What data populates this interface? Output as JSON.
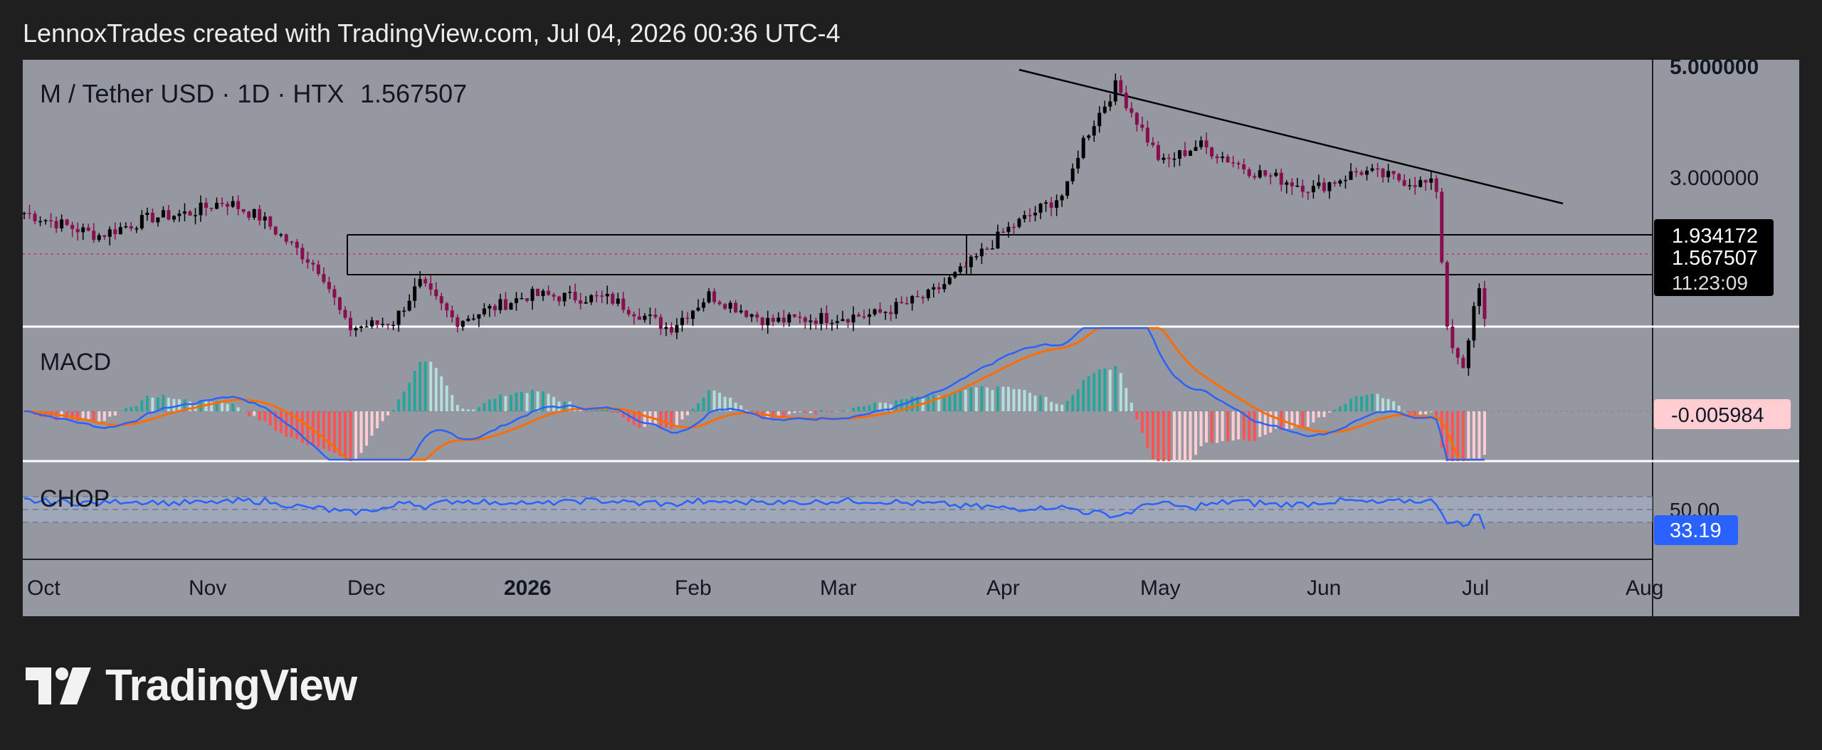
{
  "header": {
    "title": "LennoxTrades created with TradingView.com, Jul 04, 2026 00:36 UTC-4"
  },
  "symbol": {
    "label": "M / Tether USD · 1D · HTX",
    "last_price": "1.567507"
  },
  "price_axis": {
    "ticks": [
      "5.000000",
      "3.000000"
    ],
    "box_top_label": "1.934172",
    "last_price_label": "1.567507",
    "countdown": "11:23:09"
  },
  "macd": {
    "label": "MACD",
    "value": "-0.005984"
  },
  "chop": {
    "label": "CHOP",
    "level_label": "50.00",
    "value": "33.19"
  },
  "time_axis": [
    "Oct",
    "Nov",
    "Dec",
    "2026",
    "Feb",
    "Mar",
    "Apr",
    "May",
    "Jun",
    "Jul",
    "Aug"
  ],
  "brand": {
    "name": "TradingView"
  },
  "colors": {
    "panel_bg": "#9598a1",
    "up_candle": "#000000",
    "down_candle": "#880e4f",
    "macd_line": "#2962ff",
    "signal_line": "#ff6d00",
    "hist_pos_strong": "#26a69a",
    "hist_pos_weak": "#b2dfdb",
    "hist_neg_strong": "#ff5252",
    "hist_neg_weak": "#ffcdd2",
    "chop_line": "#2962ff",
    "chop_value_bg": "#2962ff",
    "macd_value_bg": "#ffcdd2"
  },
  "chart_data": {
    "type": "candlestick",
    "title": "M / Tether USD · 1D · HTX",
    "x_ticks": [
      "Oct",
      "Nov",
      "Dec",
      "2026",
      "Feb",
      "Mar",
      "Apr",
      "May",
      "Jun",
      "Jul",
      "Aug"
    ],
    "y_scale": "log",
    "y_ticks": [
      5.0,
      3.0
    ],
    "last_price": 1.567507,
    "range_box": {
      "top": 1.934172,
      "bottom": 1.45,
      "from": "Nov 27",
      "to": "Mar 27"
    },
    "trendline": {
      "from": [
        "Apr 10",
        5.0
      ],
      "to": [
        "Jul 17",
        2.55
      ]
    },
    "price_path": [
      [
        "Sep 30",
        2.6
      ],
      [
        "Oct 15",
        2.3
      ],
      [
        "Oct 25",
        2.5
      ],
      [
        "Nov 1",
        2.55
      ],
      [
        "Nov 8",
        2.7
      ],
      [
        "Nov 15",
        2.5
      ],
      [
        "Nov 27",
        1.95
      ],
      [
        "Dec 1",
        1.5
      ],
      [
        "Dec 10",
        1.55
      ],
      [
        "Dec 15",
        1.85
      ],
      [
        "Dec 22",
        1.55
      ],
      [
        "Jan 5",
        1.75
      ],
      [
        "Jan 20",
        1.72
      ],
      [
        "Jan 31",
        1.5
      ],
      [
        "Feb 8",
        1.75
      ],
      [
        "Feb 20",
        1.55
      ],
      [
        "Mar 10",
        1.6
      ],
      [
        "Mar 20",
        1.75
      ],
      [
        "Mar 27",
        2.0
      ],
      [
        "Apr 3",
        2.35
      ],
      [
        "Apr 15",
        2.8
      ],
      [
        "Apr 18",
        3.5
      ],
      [
        "Apr 25",
        4.6
      ],
      [
        "May 3",
        3.2
      ],
      [
        "May 10",
        3.5
      ],
      [
        "May 20",
        3.1
      ],
      [
        "Jun 1",
        2.85
      ],
      [
        "Jun 10",
        3.1
      ],
      [
        "Jun 20",
        2.95
      ],
      [
        "Jun 25",
        2.9
      ],
      [
        "Jun 27",
        1.55
      ],
      [
        "Jun 30",
        1.2
      ],
      [
        "Jul 1",
        1.5
      ],
      [
        "Jul 2",
        1.9
      ],
      [
        "Jul 4",
        1.567507
      ]
    ],
    "macd": {
      "value": -0.005984
    },
    "chop": {
      "value": 33.19,
      "levels": [
        61.8,
        38.2
      ]
    }
  }
}
